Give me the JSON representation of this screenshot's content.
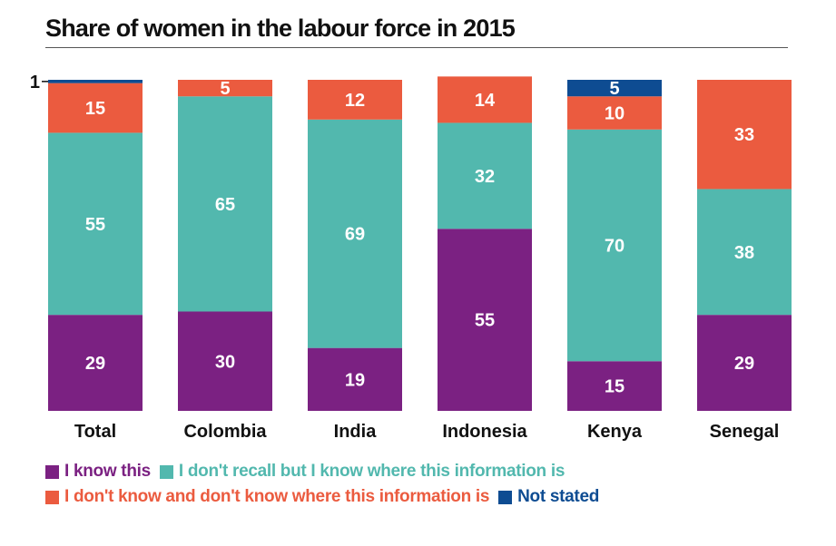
{
  "chart_data": {
    "type": "bar",
    "stacked": true,
    "title": "Share of women in the labour force in 2015",
    "categories": [
      "Total",
      "Colombia",
      "India",
      "Indonesia",
      "Kenya",
      "Senegal"
    ],
    "ylim": [
      0,
      100
    ],
    "series": [
      {
        "name": "I know this",
        "color": "#7B2182",
        "values": [
          29,
          30,
          19,
          55,
          15,
          29
        ]
      },
      {
        "name": "I don't recall but I know where this information is",
        "color": "#52B8AE",
        "values": [
          55,
          65,
          69,
          32,
          70,
          38
        ]
      },
      {
        "name": "I don't know and don't know where this information is",
        "color": "#EB5B3F",
        "values": [
          15,
          5,
          12,
          14,
          10,
          33
        ]
      },
      {
        "name": "Not stated",
        "color": "#0E4C92",
        "values": [
          1,
          0,
          0,
          0,
          5,
          0
        ]
      }
    ],
    "data_labels": [
      [
        "29",
        "55",
        "15",
        "1"
      ],
      [
        "30",
        "65",
        "5",
        ""
      ],
      [
        "19",
        "69",
        "12",
        ""
      ],
      [
        "55",
        "32",
        "14",
        ""
      ],
      [
        "15",
        "70",
        "10",
        "5"
      ],
      [
        "29",
        "38",
        "33",
        ""
      ]
    ],
    "legend": "bottom",
    "grid": false
  }
}
